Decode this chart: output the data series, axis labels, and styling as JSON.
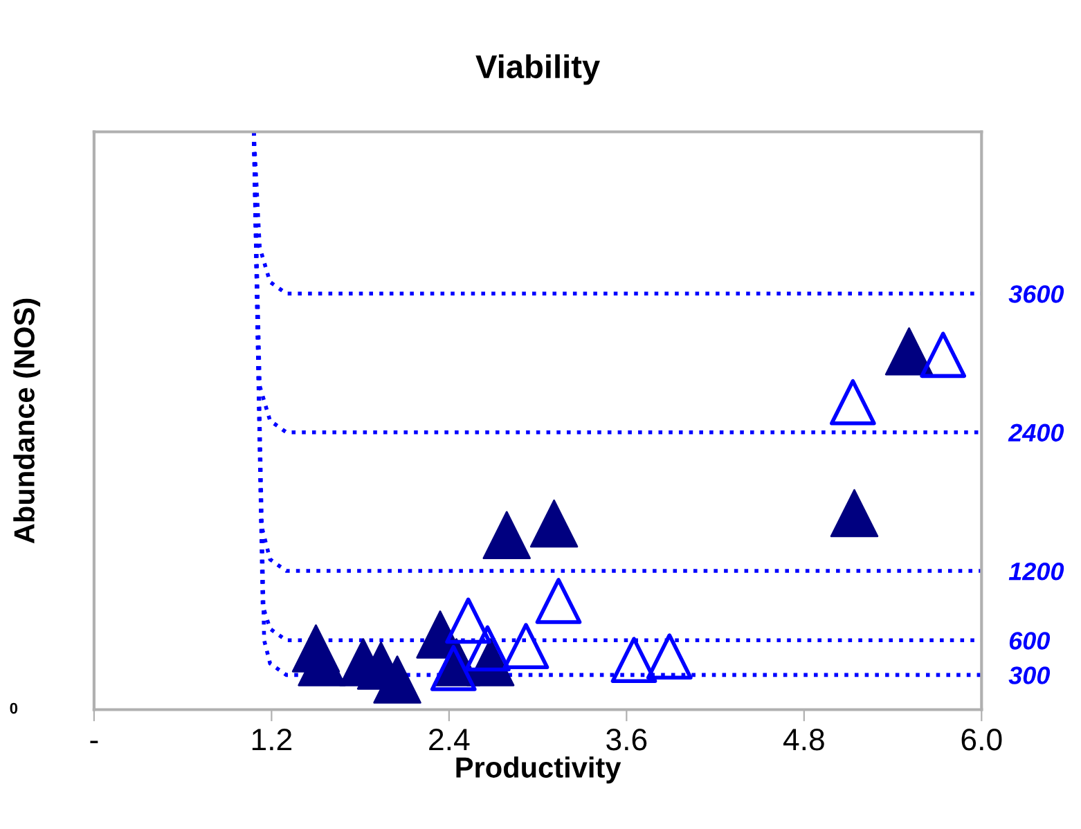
{
  "chart_data": {
    "type": "scatter",
    "title": "Viability",
    "xlabel": "Productivity",
    "ylabel": "Abundance (NOS)",
    "annotations": [
      "0"
    ],
    "xlim": [
      0,
      6.0
    ],
    "xticks": [
      {
        "value": 0,
        "label": "-"
      },
      1.2,
      2.4,
      3.6,
      4.8,
      {
        "value": 6.0,
        "label": "6.0"
      }
    ],
    "ylim": [
      0,
      5000
    ],
    "yticks": [
      300,
      600,
      1200,
      2400,
      3600
    ],
    "grid": false,
    "legend": false,
    "series": [
      {
        "type": "line",
        "color": "#0000ff",
        "line_style": "dotted",
        "x": [
          1.08,
          1.12,
          1.19,
          1.3,
          6.0
        ],
        "values": [
          5000,
          4000,
          3700,
          3600,
          3600
        ]
      },
      {
        "type": "line",
        "color": "#0000ff",
        "line_style": "dotted",
        "x": [
          1.08,
          1.12,
          1.19,
          1.3,
          6.0
        ],
        "values": [
          5000,
          2800,
          2500,
          2400,
          2400
        ]
      },
      {
        "type": "line",
        "color": "#0000ff",
        "line_style": "dotted",
        "x": [
          1.08,
          1.13,
          1.19,
          1.3,
          6.0
        ],
        "values": [
          5000,
          1600,
          1300,
          1200,
          1200
        ]
      },
      {
        "type": "line",
        "color": "#0000ff",
        "line_style": "dotted",
        "x": [
          1.08,
          1.14,
          1.19,
          1.3,
          6.0
        ],
        "values": [
          5000,
          900,
          700,
          600,
          600
        ]
      },
      {
        "type": "line",
        "color": "#0000ff",
        "line_style": "dotted",
        "x": [
          1.08,
          1.15,
          1.19,
          1.3,
          6.0
        ],
        "values": [
          5000,
          600,
          400,
          300,
          300
        ]
      },
      {
        "color": "#000080",
        "marker": "triangle",
        "x": [
          1.5,
          1.54,
          1.82,
          1.94,
          2.05,
          2.34,
          2.45,
          2.68,
          2.79,
          3.11,
          5.14,
          5.51
        ],
        "values": [
          530,
          410,
          410,
          380,
          260,
          650,
          410,
          410,
          1510,
          1610,
          1700,
          3100
        ]
      },
      {
        "color": "#0000ff",
        "marker": "triangle",
        "x": [
          2.53,
          2.66,
          2.92,
          3.14,
          2.43,
          3.65,
          3.89,
          5.13,
          5.74
        ],
        "values": [
          770,
          530,
          550,
          940,
          360,
          430,
          460,
          2660,
          3070
        ]
      }
    ]
  }
}
